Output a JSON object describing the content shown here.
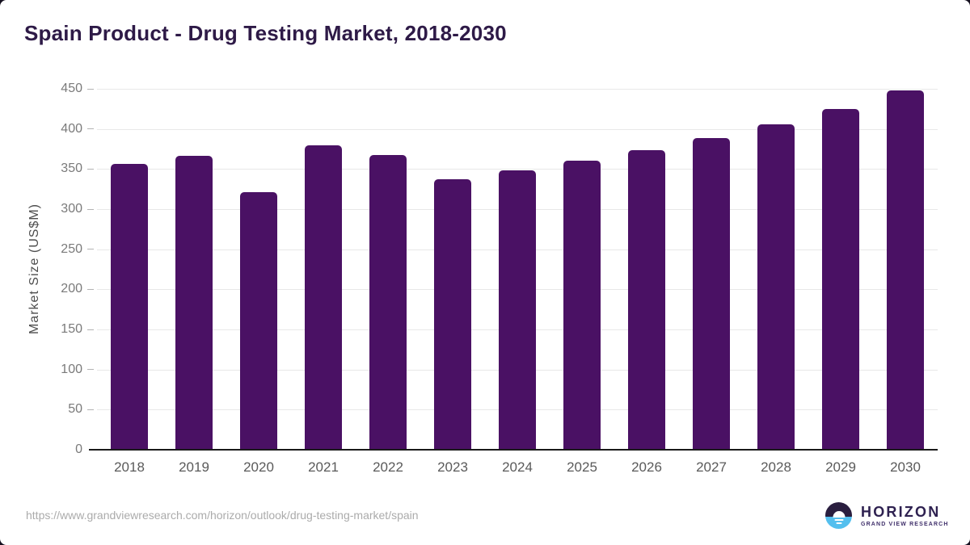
{
  "header": {
    "title": "Spain Product - Drug Testing Market, 2018-2030"
  },
  "chart_data": {
    "type": "bar",
    "title": "Spain Product - Drug Testing Market, 2018-2030",
    "categories": [
      "2018",
      "2019",
      "2020",
      "2021",
      "2022",
      "2023",
      "2024",
      "2025",
      "2026",
      "2027",
      "2028",
      "2029",
      "2030"
    ],
    "values": [
      356,
      366,
      321,
      380,
      367,
      337,
      348,
      360,
      374,
      389,
      406,
      425,
      448
    ],
    "xlabel": "",
    "ylabel": "Market Size (US$M)",
    "ylim": [
      0,
      450
    ],
    "ytick_step": 50,
    "grid": true,
    "legend": "none",
    "bar_color": "#4a1164"
  },
  "footer": {
    "source_url": "https://www.grandviewresearch.com/horizon/outlook/drug-testing-market/spain",
    "logo": {
      "name": "HORIZON",
      "tagline": "GRAND VIEW RESEARCH"
    }
  },
  "colors": {
    "title_text": "#2e1a47",
    "bar": "#4a1164",
    "axis_text": "#5a5a5a",
    "gridline": "#e8e8e8",
    "baseline": "#1a1a1a",
    "url_text": "#ababab",
    "logo_dark": "#2a1e3f",
    "logo_blue": "#54bfee"
  }
}
